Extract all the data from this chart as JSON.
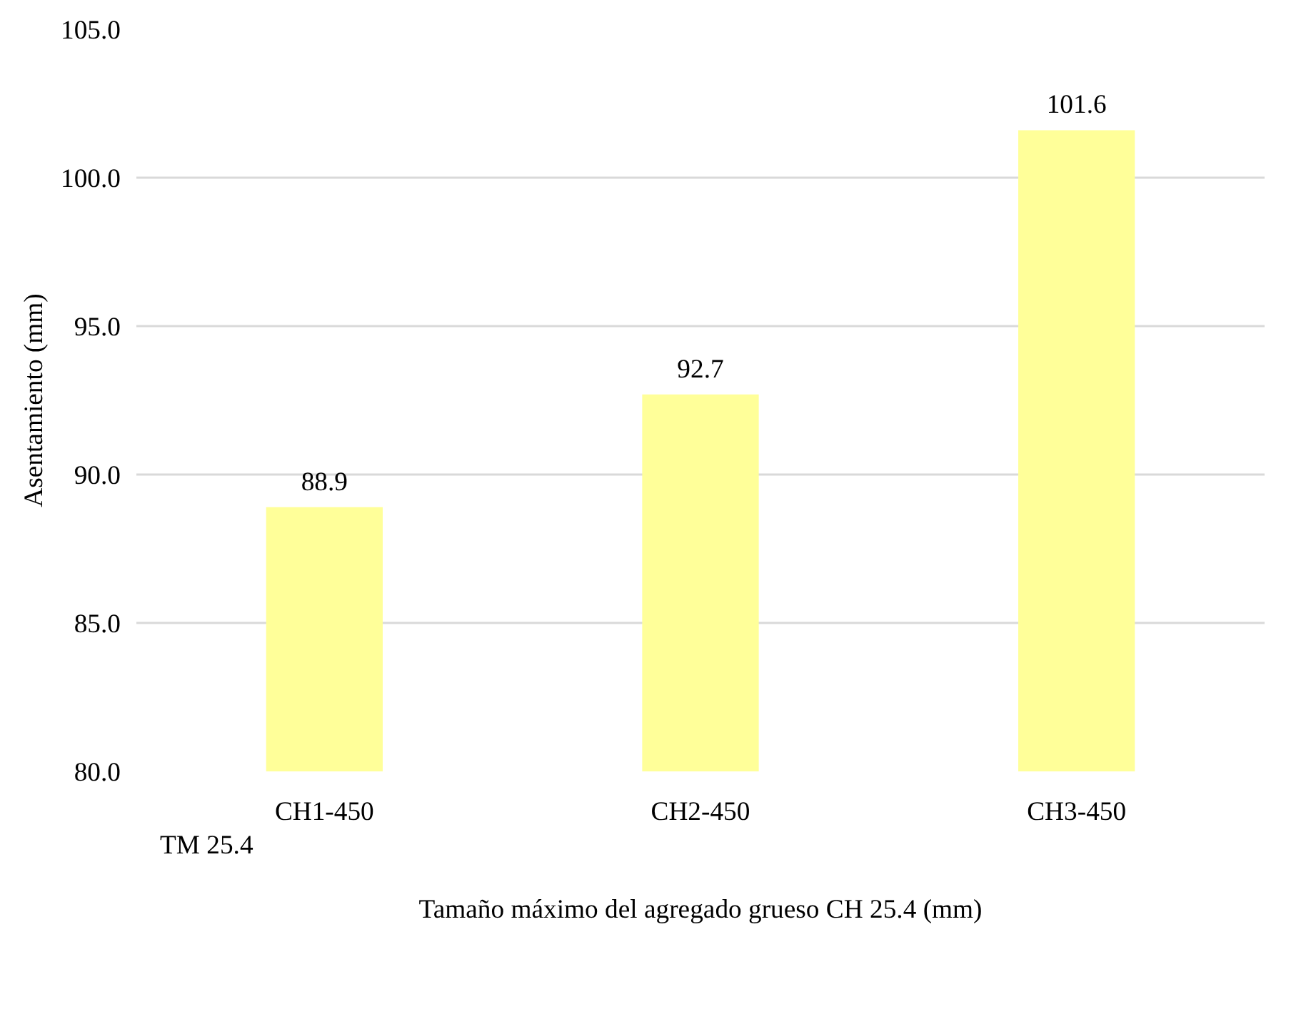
{
  "chart_data": {
    "type": "bar",
    "xlabel": "Tamaño máximo del agregado grueso CH 25.4 (mm)",
    "ylabel": "Asentamiento (mm)",
    "categories": [
      "CH1-450",
      "CH2-450",
      "CH3-450"
    ],
    "series": [
      {
        "name": "TM 25.4",
        "color": "#ffff99",
        "values": [
          88.9,
          92.7,
          101.6
        ]
      }
    ],
    "ylim": [
      80,
      105
    ],
    "yticks": [
      {
        "value": 80,
        "label": "80.0"
      },
      {
        "value": 85,
        "label": "85.0"
      },
      {
        "value": 90,
        "label": "90.0"
      },
      {
        "value": 95,
        "label": "95.0"
      },
      {
        "value": 100,
        "label": "100.0"
      },
      {
        "value": 105,
        "label": "105.0"
      }
    ],
    "grid": "y",
    "legend": "bottom left",
    "data_labels": true
  }
}
